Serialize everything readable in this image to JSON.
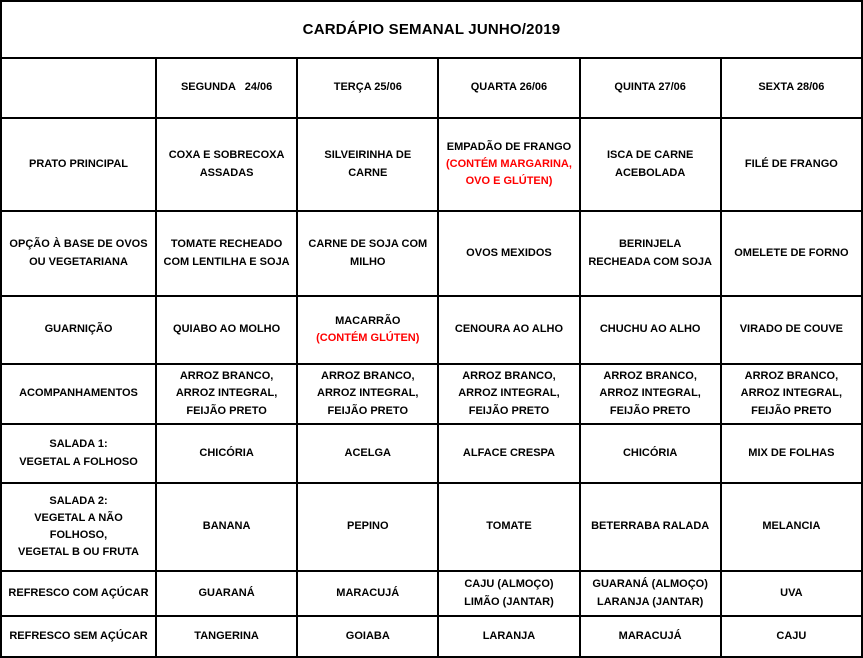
{
  "title": "CARDÁPIO SEMANAL JUNHO/2019",
  "colors": {
    "allergen_warning": "#ff0000",
    "text": "#000000",
    "border": "#000000",
    "background": "#ffffff"
  },
  "columns": [
    "",
    "SEGUNDA   24/06",
    "TERÇA 25/06",
    "QUARTA 26/06",
    "QUINTA 27/06",
    "SEXTA 28/06"
  ],
  "rows": [
    {
      "label": [
        "PRATO PRINCIPAL"
      ],
      "cells": [
        [
          {
            "t": "COXA E SOBRECOXA ASSADAS"
          }
        ],
        [
          {
            "t": "SILVEIRINHA DE CARNE"
          }
        ],
        [
          {
            "t": "EMPADÃO DE FRANGO"
          },
          {
            "t": "(CONTÉM MARGARINA, OVO E GLÚTEN)",
            "red": true
          }
        ],
        [
          {
            "t": "ISCA DE CARNE ACEBOLADA"
          }
        ],
        [
          {
            "t": "FILÉ DE FRANGO"
          }
        ]
      ]
    },
    {
      "label": [
        "OPÇÃO À BASE DE OVOS",
        "OU VEGETARIANA"
      ],
      "cells": [
        [
          {
            "t": "TOMATE RECHEADO COM LENTILHA E SOJA"
          }
        ],
        [
          {
            "t": "CARNE DE SOJA COM MILHO"
          }
        ],
        [
          {
            "t": "OVOS MEXIDOS"
          }
        ],
        [
          {
            "t": "BERINJELA RECHEADA COM SOJA"
          }
        ],
        [
          {
            "t": "OMELETE DE FORNO"
          }
        ]
      ]
    },
    {
      "label": [
        "GUARNIÇÃO"
      ],
      "cells": [
        [
          {
            "t": "QUIABO AO MOLHO"
          }
        ],
        [
          {
            "t": "MACARRÃO"
          },
          {
            "t": "(CONTÉM GLÚTEN)",
            "red": true
          }
        ],
        [
          {
            "t": "CENOURA AO ALHO"
          }
        ],
        [
          {
            "t": "CHUCHU AO ALHO"
          }
        ],
        [
          {
            "t": "VIRADO DE COUVE"
          }
        ]
      ]
    },
    {
      "label": [
        "ACOMPANHAMENTOS"
      ],
      "cells": [
        [
          {
            "t": "ARROZ BRANCO, ARROZ INTEGRAL, FEIJÃO PRETO"
          }
        ],
        [
          {
            "t": "ARROZ BRANCO, ARROZ INTEGRAL, FEIJÃO PRETO"
          }
        ],
        [
          {
            "t": "ARROZ BRANCO, ARROZ INTEGRAL, FEIJÃO PRETO"
          }
        ],
        [
          {
            "t": "ARROZ BRANCO, ARROZ INTEGRAL, FEIJÃO PRETO"
          }
        ],
        [
          {
            "t": "ARROZ BRANCO, ARROZ INTEGRAL, FEIJÃO PRETO"
          }
        ]
      ]
    },
    {
      "label": [
        "SALADA 1:",
        "VEGETAL A FOLHOSO"
      ],
      "cells": [
        [
          {
            "t": "CHICÓRIA"
          }
        ],
        [
          {
            "t": "ACELGA"
          }
        ],
        [
          {
            "t": "ALFACE CRESPA"
          }
        ],
        [
          {
            "t": "CHICÓRIA"
          }
        ],
        [
          {
            "t": "MIX DE FOLHAS"
          }
        ]
      ]
    },
    {
      "label": [
        "SALADA 2:",
        "VEGETAL A NÃO FOLHOSO,",
        "VEGETAL B OU FRUTA"
      ],
      "cells": [
        [
          {
            "t": "BANANA"
          }
        ],
        [
          {
            "t": "PEPINO"
          }
        ],
        [
          {
            "t": "TOMATE"
          }
        ],
        [
          {
            "t": "BETERRABA RALADA"
          }
        ],
        [
          {
            "t": "MELANCIA"
          }
        ]
      ]
    },
    {
      "label": [
        "REFRESCO COM AÇÚCAR"
      ],
      "cells": [
        [
          {
            "t": "GUARANÁ"
          }
        ],
        [
          {
            "t": "MARACUJÁ"
          }
        ],
        [
          {
            "t": "CAJU (ALMOÇO)"
          },
          {
            "t": "LIMÃO (JANTAR)"
          }
        ],
        [
          {
            "t": "GUARANÁ (ALMOÇO)"
          },
          {
            "t": "LARANJA (JANTAR)"
          }
        ],
        [
          {
            "t": "UVA"
          }
        ]
      ]
    },
    {
      "label": [
        "REFRESCO SEM AÇÚCAR"
      ],
      "cells": [
        [
          {
            "t": "TANGERINA"
          }
        ],
        [
          {
            "t": "GOIABA"
          }
        ],
        [
          {
            "t": "LARANJA"
          }
        ],
        [
          {
            "t": "MARACUJÁ"
          }
        ],
        [
          {
            "t": "CAJU"
          }
        ]
      ]
    }
  ]
}
